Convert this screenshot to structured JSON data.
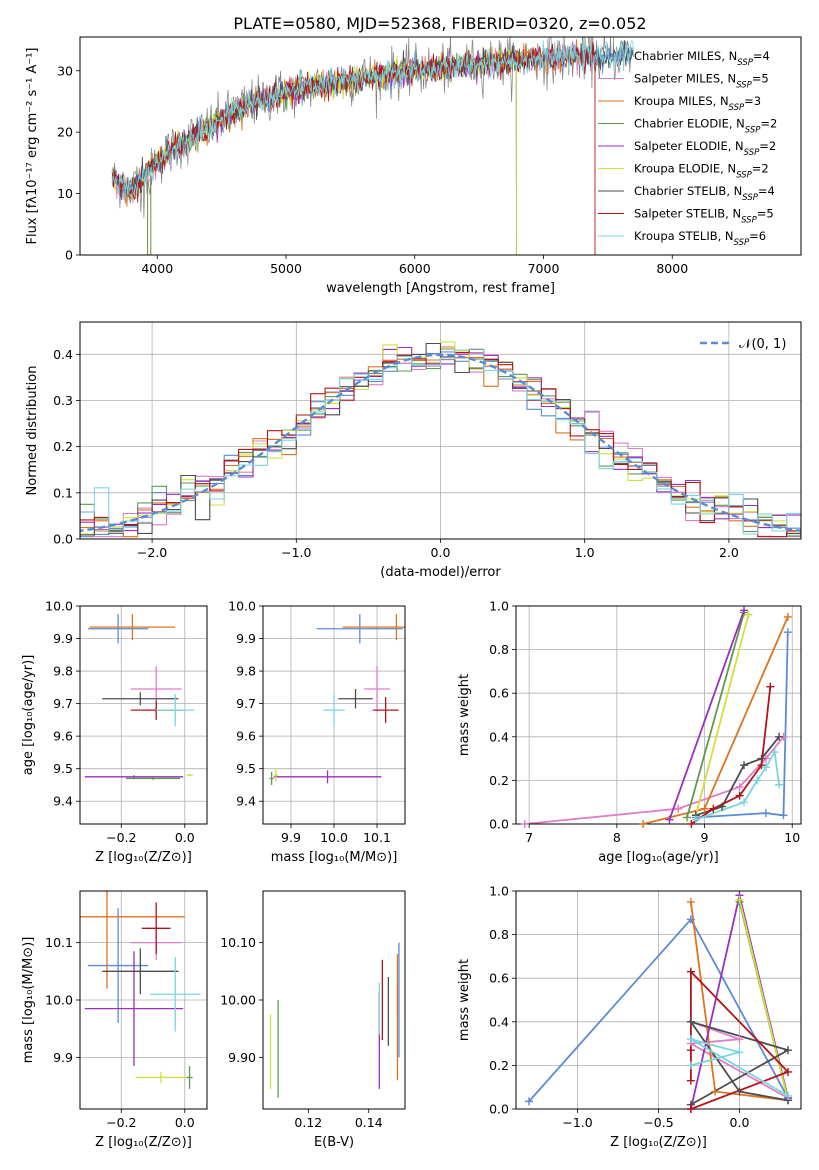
{
  "figure": {
    "title": "PLATE=0580, MJD=52368, FIBERID=0320, z=0.052"
  },
  "colors": {
    "Chabrier MILES": "#5b8bd6",
    "Salpeter MILES": "#e07cc8",
    "Kroupa MILES": "#e0731f",
    "Chabrier ELODIE": "#5f9a52",
    "Salpeter ELODIE": "#9a2fc0",
    "Kroupa ELODIE": "#d3df3a",
    "Chabrier STELIB": "#4d4d4d",
    "Salpeter STELIB": "#b3141c",
    "Kroupa STELIB": "#79d6de",
    "data": "#808080",
    "grid": "#b0b0b0"
  },
  "legends": {
    "spectrum": [
      {
        "model": "Chabrier MILES",
        "pre": "Chabrier MILES, N",
        "n": "4"
      },
      {
        "model": "Salpeter MILES",
        "pre": "Salpeter MILES, N",
        "n": "5"
      },
      {
        "model": "Kroupa MILES",
        "pre": "Kroupa MILES, N",
        "n": "3"
      },
      {
        "model": "Chabrier ELODIE",
        "pre": "Chabrier ELODIE, N",
        "n": "2"
      },
      {
        "model": "Salpeter ELODIE",
        "pre": "Salpeter ELODIE, N",
        "n": "2"
      },
      {
        "model": "Kroupa ELODIE",
        "pre": "Kroupa ELODIE, N",
        "n": "2"
      },
      {
        "model": "Chabrier STELIB",
        "pre": "Chabrier STELIB, N",
        "n": "4"
      },
      {
        "model": "Salpeter STELIB",
        "pre": "Salpeter STELIB, N",
        "n": "5"
      },
      {
        "model": "Kroupa STELIB",
        "pre": "Kroupa STELIB, N",
        "n": "6"
      }
    ],
    "sub": "SSP",
    "normal": "𝒩(0, 1)"
  },
  "chart_data": [
    {
      "id": "spectrum",
      "type": "line",
      "xlabel": "wavelength [Angstrom, rest frame]",
      "ylabel": "Flux [fλ10⁻¹⁷ erg cm⁻² s⁻¹ A⁻¹]",
      "xlim": [
        3400,
        9000
      ],
      "ylim": [
        0,
        35.5
      ],
      "xticks": [
        4000,
        5000,
        6000,
        7000,
        8000
      ],
      "yticks": [
        0,
        10,
        20,
        30
      ],
      "grid": false,
      "legend_loc": "top-right",
      "continuum": [
        [
          3650,
          12.5
        ],
        [
          3800,
          10.5
        ],
        [
          3950,
          14
        ],
        [
          4100,
          17
        ],
        [
          4300,
          19.5
        ],
        [
          4500,
          22
        ],
        [
          4700,
          24.5
        ],
        [
          5000,
          26.5
        ],
        [
          5200,
          27.5
        ],
        [
          5500,
          28.5
        ],
        [
          5800,
          29.5
        ],
        [
          6000,
          30
        ],
        [
          6300,
          30.5
        ],
        [
          6600,
          31.5
        ],
        [
          7000,
          32
        ],
        [
          7300,
          32.3
        ],
        [
          7500,
          32.3
        ],
        [
          7700,
          33
        ]
      ],
      "extent": {
        "Chabrier MILES": 7700,
        "Salpeter MILES": 7400,
        "Kroupa MILES": 7400,
        "Chabrier ELODIE": 6790,
        "Salpeter ELODIE": 6790,
        "Kroupa ELODIE": 6790,
        "Chabrier STELIB": 7700,
        "Salpeter STELIB": 7400,
        "Kroupa STELIB": 7700
      }
    },
    {
      "id": "residuals",
      "type": "histogram",
      "xlabel": "(data-model)/error",
      "ylabel": "Normed distribution",
      "xlim": [
        -2.5,
        2.5
      ],
      "ylim": [
        0,
        0.47
      ],
      "xticks": [
        -2,
        -1,
        0,
        1,
        2
      ],
      "yticks": [
        0.0,
        0.1,
        0.2,
        0.3,
        0.4
      ],
      "grid": true,
      "legend_loc": "top-right",
      "bin_width": 0.1,
      "curve": "normal pdf, mean 0, sigma 1"
    },
    {
      "id": "age-Z",
      "type": "scatter",
      "xlabel": "Z [log₁₀(Z/Z⊙)]",
      "ylabel": "age  [log₁₀(age/yr)]",
      "xlim": [
        -0.33,
        0.07
      ],
      "ylim": [
        9.33,
        10.0
      ],
      "xticks": [
        -0.2,
        0.0
      ],
      "yticks": [
        9.4,
        9.5,
        9.6,
        9.7,
        9.8,
        9.9,
        10.0
      ],
      "grid": true,
      "points": [
        {
          "model": "Chabrier MILES",
          "x": -0.21,
          "xerr": 0.095,
          "y": 9.93,
          "yerr": 0.045
        },
        {
          "model": "Salpeter MILES",
          "x": -0.09,
          "xerr": 0.08,
          "y": 9.745,
          "yerr": 0.07
        },
        {
          "model": "Kroupa MILES",
          "x": -0.165,
          "xerr": 0.135,
          "y": 9.935,
          "yerr": 0.04
        },
        {
          "model": "Chabrier ELODIE",
          "x": -0.1,
          "xerr": 0.085,
          "y": 9.47,
          "yerr": 0.005
        },
        {
          "model": "Salpeter ELODIE",
          "x": -0.16,
          "xerr": 0.155,
          "y": 9.475,
          "yerr": 0.005
        },
        {
          "model": "Kroupa ELODIE",
          "x": 0.015,
          "xerr": 0.01,
          "y": 9.48,
          "yerr": 0.004
        },
        {
          "model": "Chabrier STELIB",
          "x": -0.14,
          "xerr": 0.12,
          "y": 9.715,
          "yerr": 0.02
        },
        {
          "model": "Salpeter STELIB",
          "x": -0.09,
          "xerr": 0.08,
          "y": 9.68,
          "yerr": 0.03
        },
        {
          "model": "Kroupa STELIB",
          "x": -0.03,
          "xerr": 0.06,
          "y": 9.68,
          "yerr": 0.05
        }
      ]
    },
    {
      "id": "age-mass",
      "type": "scatter",
      "xlabel": "mass [log₁₀(M/M⊙)]",
      "ylabel": "",
      "xlim": [
        9.835,
        10.165
      ],
      "ylim": [
        9.33,
        10.0
      ],
      "xticks": [
        9.9,
        10.0,
        10.1
      ],
      "yticks": [
        9.4,
        9.5,
        9.6,
        9.7,
        9.8,
        9.9,
        10.0
      ],
      "grid": true,
      "points": [
        {
          "model": "Chabrier MILES",
          "x": 10.06,
          "xerr": 0.1,
          "y": 9.93,
          "yerr": 0.045
        },
        {
          "model": "Salpeter MILES",
          "x": 10.1,
          "xerr": 0.03,
          "y": 9.745,
          "yerr": 0.07
        },
        {
          "model": "Kroupa MILES",
          "x": 10.145,
          "xerr": 0.125,
          "y": 9.935,
          "yerr": 0.04
        },
        {
          "model": "Chabrier ELODIE",
          "x": 9.855,
          "xerr": 0.005,
          "y": 9.47,
          "yerr": 0.02
        },
        {
          "model": "Salpeter ELODIE",
          "x": 9.985,
          "xerr": 0.125,
          "y": 9.475,
          "yerr": 0.02
        },
        {
          "model": "Kroupa ELODIE",
          "x": 9.865,
          "xerr": 0.005,
          "y": 9.48,
          "yerr": 0.02
        },
        {
          "model": "Chabrier STELIB",
          "x": 10.05,
          "xerr": 0.04,
          "y": 9.715,
          "yerr": 0.03
        },
        {
          "model": "Salpeter STELIB",
          "x": 10.12,
          "xerr": 0.03,
          "y": 9.68,
          "yerr": 0.04
        },
        {
          "model": "Kroupa STELIB",
          "x": 10.0,
          "xerr": 0.025,
          "y": 9.68,
          "yerr": 0.05
        }
      ]
    },
    {
      "id": "weight-age",
      "type": "line",
      "xlabel": "age  [log₁₀(age/yr)]",
      "ylabel": "mass weight",
      "xlim": [
        6.85,
        10.1
      ],
      "ylim": [
        0,
        1.0
      ],
      "xticks": [
        7,
        8,
        9,
        10
      ],
      "yticks": [
        0.0,
        0.2,
        0.4,
        0.6,
        0.8,
        1.0
      ],
      "grid": true,
      "series": [
        {
          "model": "Chabrier MILES",
          "points": [
            [
              8.9,
              0.03
            ],
            [
              9.7,
              0.05
            ],
            [
              9.9,
              0.04
            ],
            [
              9.95,
              0.88
            ]
          ]
        },
        {
          "model": "Salpeter MILES",
          "points": [
            [
              6.95,
              0.0
            ],
            [
              8.7,
              0.07
            ],
            [
              9.4,
              0.17
            ],
            [
              9.7,
              0.3
            ],
            [
              9.9,
              0.4
            ]
          ]
        },
        {
          "model": "Kroupa MILES",
          "points": [
            [
              8.3,
              0.0
            ],
            [
              9.0,
              0.07
            ],
            [
              9.95,
              0.95
            ]
          ]
        },
        {
          "model": "Chabrier ELODIE",
          "points": [
            [
              8.8,
              0.03
            ],
            [
              9.45,
              0.97
            ]
          ]
        },
        {
          "model": "Salpeter ELODIE",
          "points": [
            [
              8.6,
              0.02
            ],
            [
              9.45,
              0.98
            ]
          ]
        },
        {
          "model": "Kroupa ELODIE",
          "points": [
            [
              8.9,
              0.04
            ],
            [
              9.5,
              0.96
            ]
          ]
        },
        {
          "model": "Chabrier STELIB",
          "points": [
            [
              8.9,
              0.04
            ],
            [
              9.2,
              0.08
            ],
            [
              9.45,
              0.27
            ],
            [
              9.65,
              0.3
            ],
            [
              9.85,
              0.4
            ]
          ]
        },
        {
          "model": "Salpeter STELIB",
          "points": [
            [
              8.85,
              0.0
            ],
            [
              9.1,
              0.07
            ],
            [
              9.4,
              0.13
            ],
            [
              9.65,
              0.27
            ],
            [
              9.75,
              0.63
            ]
          ]
        },
        {
          "model": "Kroupa STELIB",
          "points": [
            [
              8.9,
              0.02
            ],
            [
              9.45,
              0.1
            ],
            [
              9.6,
              0.2
            ],
            [
              9.7,
              0.26
            ],
            [
              9.8,
              0.33
            ],
            [
              9.85,
              0.18
            ]
          ]
        }
      ]
    },
    {
      "id": "mass-Z",
      "type": "scatter",
      "xlabel": "Z [log₁₀(Z/Z⊙)]",
      "ylabel": "mass [log₁₀(M/M⊙)]",
      "xlim": [
        -0.33,
        0.07
      ],
      "ylim": [
        9.81,
        10.19
      ],
      "xticks": [
        -0.2,
        0.0
      ],
      "yticks": [
        9.9,
        10.0,
        10.1
      ],
      "grid": true,
      "points": [
        {
          "model": "Chabrier MILES",
          "x": -0.21,
          "xerr": 0.095,
          "y": 10.06,
          "yerr": 0.1
        },
        {
          "model": "Salpeter MILES",
          "x": -0.09,
          "xerr": 0.08,
          "y": 10.1,
          "yerr": 0.03
        },
        {
          "model": "Kroupa MILES",
          "x": -0.245,
          "xerr": 0.245,
          "y": 10.145,
          "yerr": 0.125
        },
        {
          "model": "Chabrier ELODIE",
          "x": 0.015,
          "xerr": 0.01,
          "y": 9.865,
          "yerr": 0.02
        },
        {
          "model": "Salpeter ELODIE",
          "x": -0.16,
          "xerr": 0.155,
          "y": 9.985,
          "yerr": 0.1
        },
        {
          "model": "Kroupa ELODIE",
          "x": -0.075,
          "xerr": 0.08,
          "y": 9.865,
          "yerr": 0.01
        },
        {
          "model": "Chabrier STELIB",
          "x": -0.14,
          "xerr": 0.12,
          "y": 10.05,
          "yerr": 0.04
        },
        {
          "model": "Salpeter STELIB",
          "x": -0.09,
          "xerr": 0.045,
          "y": 10.125,
          "yerr": 0.045
        },
        {
          "model": "Kroupa STELIB",
          "x": -0.03,
          "xerr": 0.08,
          "y": 10.01,
          "yerr": 0.065
        }
      ]
    },
    {
      "id": "mass-EBV",
      "type": "scatter",
      "xlabel": "E(B-V)",
      "ylabel": "",
      "xlim": [
        0.105,
        0.152
      ],
      "ylim": [
        9.81,
        10.19
      ],
      "xticks": [
        0.12,
        0.14
      ],
      "yticks": [
        9.9,
        10.0,
        10.1
      ],
      "grid": false,
      "points": [
        {
          "model": "Chabrier MILES",
          "x": 0.15,
          "y": 10.0,
          "yerr": 0.1
        },
        {
          "model": "Salpeter MILES",
          "x": 0.1495,
          "y": 10.0,
          "yerr": 0.03
        },
        {
          "model": "Kroupa MILES",
          "x": 0.1495,
          "y": 9.97,
          "yerr": 0.11
        },
        {
          "model": "Chabrier ELODIE",
          "x": 0.11,
          "y": 9.915,
          "yerr": 0.085
        },
        {
          "model": "Salpeter ELODIE",
          "x": 0.1435,
          "y": 9.93,
          "yerr": 0.085
        },
        {
          "model": "Kroupa ELODIE",
          "x": 0.1075,
          "y": 9.91,
          "yerr": 0.065
        },
        {
          "model": "Chabrier STELIB",
          "x": 0.1465,
          "y": 9.98,
          "yerr": 0.06
        },
        {
          "model": "Salpeter STELIB",
          "x": 0.1445,
          "y": 10.0,
          "yerr": 0.07
        },
        {
          "model": "Kroupa STELIB",
          "x": 0.1435,
          "y": 9.985,
          "yerr": 0.045
        }
      ]
    },
    {
      "id": "weight-Z",
      "type": "line",
      "xlabel": "Z [log₁₀(Z/Z⊙)]",
      "ylabel": "mass weight",
      "xlim": [
        -1.38,
        0.38
      ],
      "ylim": [
        0,
        1.0
      ],
      "xticks": [
        -1.0,
        -0.5,
        0.0
      ],
      "yticks": [
        0.0,
        0.2,
        0.4,
        0.6,
        0.8,
        1.0
      ],
      "grid": true,
      "series": [
        {
          "model": "Chabrier MILES",
          "points": [
            [
              -1.3,
              0.035
            ],
            [
              -0.3,
              0.87
            ],
            [
              0.3,
              0.05
            ]
          ]
        },
        {
          "model": "Salpeter MILES",
          "points": [
            [
              -0.3,
              0.4
            ],
            [
              0.0,
              0.32
            ],
            [
              -0.3,
              0.3
            ],
            [
              0.3,
              0.05
            ]
          ]
        },
        {
          "model": "Kroupa MILES",
          "points": [
            [
              -0.3,
              0.95
            ],
            [
              -0.15,
              0.08
            ],
            [
              0.3,
              0.04
            ]
          ]
        },
        {
          "model": "Chabrier ELODIE",
          "points": [
            [
              0.0,
              0.95
            ],
            [
              0.3,
              0.04
            ]
          ]
        },
        {
          "model": "Salpeter ELODIE",
          "points": [
            [
              -0.3,
              0.0
            ],
            [
              0.0,
              0.98
            ],
            [
              0.3,
              0.05
            ]
          ]
        },
        {
          "model": "Kroupa ELODIE",
          "points": [
            [
              0.0,
              0.96
            ],
            [
              0.3,
              0.04
            ]
          ]
        },
        {
          "model": "Chabrier STELIB",
          "points": [
            [
              -0.3,
              0.02
            ],
            [
              0.3,
              0.27
            ],
            [
              -0.3,
              0.4
            ],
            [
              0.0,
              0.08
            ],
            [
              0.3,
              0.04
            ]
          ]
        },
        {
          "model": "Salpeter STELIB",
          "points": [
            [
              -0.3,
              0.0
            ],
            [
              0.3,
              0.17
            ],
            [
              -0.3,
              0.63
            ],
            [
              -0.3,
              0.13
            ],
            [
              -0.3,
              0.27
            ]
          ]
        },
        {
          "model": "Kroupa STELIB",
          "points": [
            [
              -0.3,
              0.2
            ],
            [
              0.0,
              0.26
            ],
            [
              -0.3,
              0.32
            ],
            [
              0.3,
              0.06
            ]
          ]
        }
      ]
    }
  ]
}
